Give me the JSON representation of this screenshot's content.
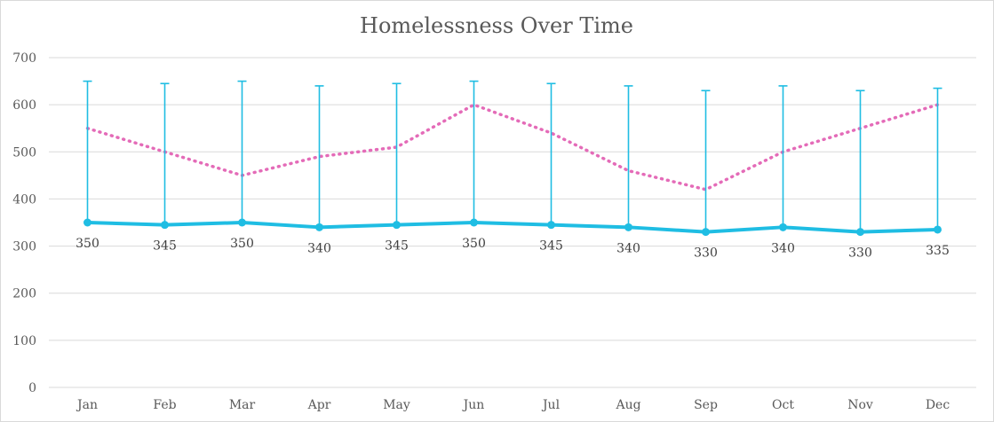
{
  "chart_data": {
    "type": "line",
    "title": "Homelessness Over Time",
    "xlabel": "",
    "ylabel": "",
    "categories": [
      "Jan",
      "Feb",
      "Mar",
      "Apr",
      "May",
      "Jun",
      "Jul",
      "Aug",
      "Sep",
      "Oct",
      "Nov",
      "Dec"
    ],
    "y_ticks": [
      "0",
      "100",
      "200",
      "300",
      "400",
      "500",
      "600",
      "700"
    ],
    "ylim": [
      0,
      700
    ],
    "grid": true,
    "legend": "none",
    "series": [
      {
        "values": [
          350,
          345,
          350,
          340,
          345,
          350,
          345,
          340,
          330,
          340,
          330,
          335
        ],
        "error_upper": [
          650,
          645,
          650,
          640,
          645,
          650,
          645,
          640,
          630,
          640,
          630,
          635
        ],
        "data_labels": [
          "350",
          "345",
          "350",
          "340",
          "345",
          "350",
          "345",
          "340",
          "330",
          "340",
          "330",
          "335"
        ],
        "color": "#1fbde3",
        "style": "solid",
        "markers": true
      },
      {
        "values": [
          550,
          500,
          450,
          490,
          510,
          600,
          540,
          460,
          420,
          500,
          550,
          600
        ],
        "color": "#e46bb8",
        "style": "dotted",
        "markers": false
      }
    ]
  }
}
